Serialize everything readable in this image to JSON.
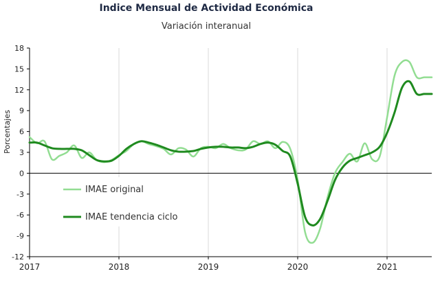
{
  "chart_data": {
    "type": "line",
    "title": "Indice Mensual de  Actividad Económica",
    "subtitle": "Variación interanual",
    "ylabel": "Porcentajes",
    "xlabel": "",
    "ylim": [
      -12,
      18
    ],
    "xlim": [
      2017,
      2021.5
    ],
    "y_ticks": [
      "18",
      "15",
      "12",
      "9",
      "6",
      "3",
      "0",
      "-3",
      "-6",
      "-9",
      "-12"
    ],
    "x_ticks": [
      "2017",
      "2018",
      "2019",
      "2020",
      "2021"
    ],
    "grid": "vertical",
    "legend_position": "left-center",
    "colors": {
      "original": "#92dd92",
      "trend": "#1f8a1f",
      "axis": "#000000",
      "grid": "#d9d9d9"
    },
    "series": [
      {
        "name": "IMAE original",
        "x": [
          2017.0,
          2017.083,
          2017.167,
          2017.25,
          2017.333,
          2017.417,
          2017.5,
          2017.583,
          2017.667,
          2017.75,
          2017.833,
          2017.917,
          2018.0,
          2018.083,
          2018.167,
          2018.25,
          2018.333,
          2018.417,
          2018.5,
          2018.583,
          2018.667,
          2018.75,
          2018.833,
          2018.917,
          2019.0,
          2019.083,
          2019.167,
          2019.25,
          2019.333,
          2019.417,
          2019.5,
          2019.583,
          2019.667,
          2019.75,
          2019.833,
          2019.917,
          2020.0,
          2020.083,
          2020.167,
          2020.25,
          2020.333,
          2020.417,
          2020.5,
          2020.583,
          2020.667,
          2020.75,
          2020.833,
          2020.917,
          2021.0,
          2021.083,
          2021.167,
          2021.25,
          2021.333,
          2021.417,
          2021.5
        ],
        "values": [
          5.2,
          4.3,
          4.6,
          2.0,
          2.5,
          3.0,
          4.0,
          2.2,
          3.0,
          1.9,
          1.6,
          1.9,
          2.6,
          3.2,
          4.2,
          4.6,
          4.2,
          3.9,
          3.5,
          2.7,
          3.6,
          3.4,
          2.4,
          3.6,
          3.8,
          3.6,
          4.2,
          3.6,
          3.3,
          3.4,
          4.6,
          4.2,
          4.6,
          3.6,
          4.5,
          3.5,
          -1.0,
          -8.5,
          -10.0,
          -8.0,
          -3.5,
          0.0,
          1.6,
          2.8,
          1.7,
          4.3,
          2.0,
          2.4,
          8.0,
          14.0,
          16.0,
          16.0,
          13.8,
          13.8,
          13.8
        ]
      },
      {
        "name": "IMAE tendencia ciclo",
        "x": [
          2017.0,
          2017.083,
          2017.167,
          2017.25,
          2017.333,
          2017.417,
          2017.5,
          2017.583,
          2017.667,
          2017.75,
          2017.833,
          2017.917,
          2018.0,
          2018.083,
          2018.167,
          2018.25,
          2018.333,
          2018.417,
          2018.5,
          2018.583,
          2018.667,
          2018.75,
          2018.833,
          2018.917,
          2019.0,
          2019.083,
          2019.167,
          2019.25,
          2019.333,
          2019.417,
          2019.5,
          2019.583,
          2019.667,
          2019.75,
          2019.833,
          2019.917,
          2020.0,
          2020.083,
          2020.167,
          2020.25,
          2020.333,
          2020.417,
          2020.5,
          2020.583,
          2020.667,
          2020.75,
          2020.833,
          2020.917,
          2021.0,
          2021.083,
          2021.167,
          2021.25,
          2021.333,
          2021.417,
          2021.5
        ],
        "values": [
          4.4,
          4.4,
          4.0,
          3.6,
          3.5,
          3.5,
          3.5,
          3.3,
          2.6,
          1.9,
          1.7,
          1.8,
          2.5,
          3.5,
          4.2,
          4.6,
          4.4,
          4.1,
          3.7,
          3.3,
          3.1,
          3.1,
          3.2,
          3.5,
          3.7,
          3.8,
          3.8,
          3.7,
          3.7,
          3.6,
          3.8,
          4.2,
          4.4,
          4.1,
          3.2,
          2.4,
          -1.5,
          -6.3,
          -7.5,
          -6.6,
          -4.0,
          -1.0,
          0.8,
          1.8,
          2.2,
          2.6,
          3.0,
          3.8,
          5.8,
          8.7,
          12.3,
          13.2,
          11.4,
          11.4,
          11.4
        ]
      }
    ]
  }
}
